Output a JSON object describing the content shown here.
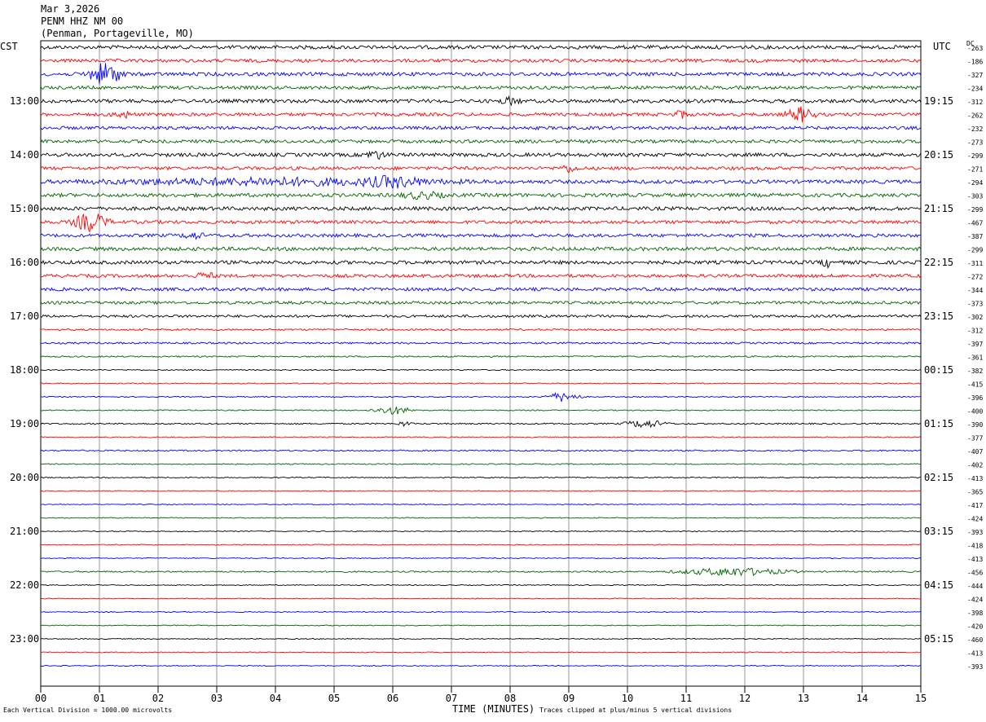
{
  "header": {
    "date": "Mar 3,2026",
    "station": "PENM HHZ NM 00",
    "location": "(Penman, Portageville, MO)"
  },
  "left_zone": "CST",
  "right_zone": "UTC",
  "dc_label": "DC",
  "footer": {
    "division_note": "Each Vertical Division = 1000.00 microvolts",
    "xlabel": "TIME (MINUTES)",
    "clip_note": "Traces clipped at plus/minus 5 vertical divisions"
  },
  "colors": {
    "trace_cycle": [
      "#000000",
      "#ff0000",
      "#0000ff",
      "#006400"
    ],
    "grid": "#808080"
  },
  "chart_data": {
    "type": "line",
    "description_of_series": "helicorder seismogram, 15 minutes per line",
    "x_ticks": [
      "00",
      "01",
      "02",
      "03",
      "04",
      "05",
      "06",
      "07",
      "08",
      "09",
      "10",
      "11",
      "12",
      "13",
      "14",
      "15"
    ],
    "xlim": [
      0,
      15
    ],
    "left_hour_labels": [
      "13:00",
      "14:00",
      "15:00",
      "16:00",
      "17:00",
      "18:00",
      "19:00",
      "20:00",
      "21:00",
      "22:00",
      "23:00"
    ],
    "right_hour_labels": [
      "19:15",
      "20:15",
      "21:15",
      "22:15",
      "23:15",
      "00:15",
      "01:15",
      "02:15",
      "03:15",
      "04:15",
      "05:15"
    ],
    "dc_offsets": [
      "-263",
      "-186",
      "-327",
      "-234",
      "-312",
      "-262",
      "-232",
      "-273",
      "-299",
      "-271",
      "-294",
      "-303",
      "-299",
      "-467",
      "-387",
      "-299",
      "-311",
      "-272",
      "-344",
      "-373",
      "-302",
      "-312",
      "-397",
      "-361",
      "-382",
      "-415",
      "-396",
      "-400",
      "-390",
      "-377",
      "-407",
      "-402",
      "-413",
      "-365",
      "-417",
      "-424",
      "-393",
      "-418",
      "-413",
      "-456",
      "-444",
      "-424",
      "-398",
      "-420",
      "-460",
      "-413",
      "-393"
    ],
    "trace_noise_level": [
      1.0,
      0.9,
      1.0,
      0.9,
      1.0,
      0.9,
      0.9,
      0.9,
      1.0,
      0.9,
      1.0,
      1.0,
      1.0,
      0.9,
      0.9,
      1.0,
      1.0,
      0.9,
      0.9,
      0.8,
      0.7,
      0.5,
      0.5,
      0.4,
      0.3,
      0.3,
      0.3,
      0.3,
      0.4,
      0.3,
      0.4,
      0.3,
      0.3,
      0.25,
      0.25,
      0.25,
      0.25,
      0.25,
      0.25,
      0.4,
      0.25,
      0.25,
      0.25,
      0.25,
      0.25,
      0.25,
      0.25
    ],
    "events": [
      {
        "trace": 2,
        "minute": 1.1,
        "amplitude": 14,
        "duration": 0.5
      },
      {
        "trace": 4,
        "minute": 8.0,
        "amplitude": 4,
        "duration": 0.3
      },
      {
        "trace": 5,
        "minute": 1.4,
        "amplitude": 4,
        "duration": 0.3
      },
      {
        "trace": 5,
        "minute": 12.95,
        "amplitude": 9,
        "duration": 0.4
      },
      {
        "trace": 5,
        "minute": 10.9,
        "amplitude": 5,
        "duration": 0.2
      },
      {
        "trace": 8,
        "minute": 5.7,
        "amplitude": 5,
        "duration": 0.3
      },
      {
        "trace": 9,
        "minute": 9.0,
        "amplitude": 4,
        "duration": 0.3
      },
      {
        "trace": 10,
        "minute": 4.0,
        "amplitude": 4,
        "duration": 5.0
      },
      {
        "trace": 10,
        "minute": 6.0,
        "amplitude": 5,
        "duration": 0.8
      },
      {
        "trace": 11,
        "minute": 6.5,
        "amplitude": 4,
        "duration": 0.6
      },
      {
        "trace": 13,
        "minute": 0.85,
        "amplitude": 12,
        "duration": 0.5
      },
      {
        "trace": 14,
        "minute": 2.6,
        "amplitude": 4,
        "duration": 0.3
      },
      {
        "trace": 16,
        "minute": 13.4,
        "amplitude": 5,
        "duration": 0.2
      },
      {
        "trace": 17,
        "minute": 2.8,
        "amplitude": 4,
        "duration": 0.3
      },
      {
        "trace": 26,
        "minute": 8.9,
        "amplitude": 6,
        "duration": 0.5
      },
      {
        "trace": 27,
        "minute": 6.0,
        "amplitude": 5,
        "duration": 0.6
      },
      {
        "trace": 28,
        "minute": 10.3,
        "amplitude": 5,
        "duration": 0.6
      },
      {
        "trace": 28,
        "minute": 6.2,
        "amplitude": 3,
        "duration": 0.2
      },
      {
        "trace": 39,
        "minute": 11.8,
        "amplitude": 5,
        "duration": 1.6
      }
    ]
  }
}
